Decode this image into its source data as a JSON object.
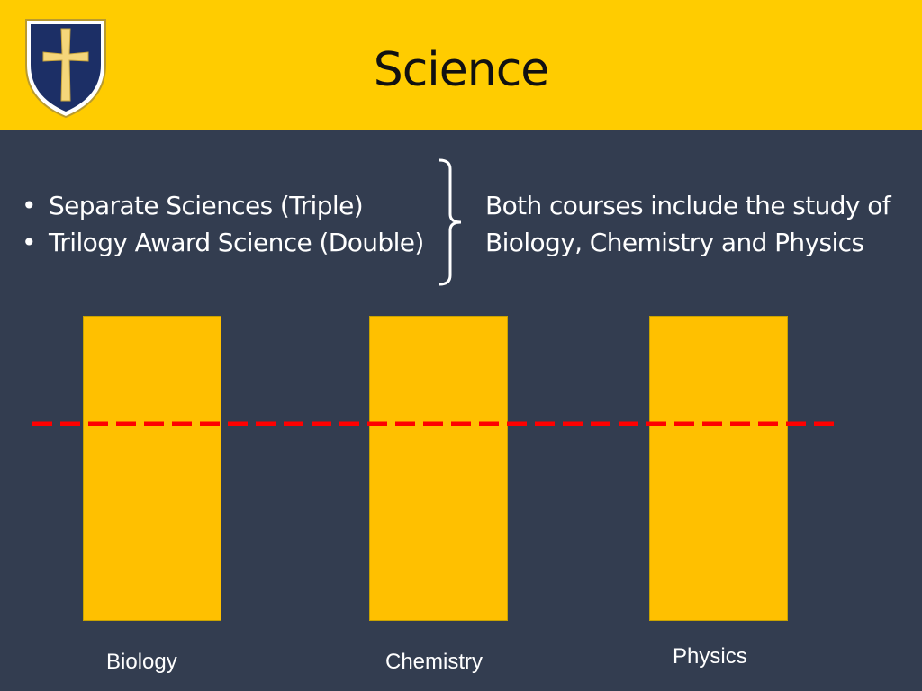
{
  "header": {
    "title": "Science",
    "crest_icon": "school-crest-icon",
    "background": "#FFCC00"
  },
  "courses": [
    "Separate Sciences (Triple)",
    "Trilogy Award Science (Double)"
  ],
  "bullet_symbol": "•",
  "note": {
    "line1": "Both courses include the study of",
    "line2": "Biology, Chemistry and Physics"
  },
  "subjects": [
    {
      "label": "Biology",
      "fill_fraction": 1.0
    },
    {
      "label": "Chemistry",
      "fill_fraction": 1.0
    },
    {
      "label": "Physics",
      "fill_fraction": 1.0
    }
  ],
  "colors": {
    "background": "#333D50",
    "bar": "#FFC000",
    "dash_line": "#FF0000",
    "text": "#FFFFFF"
  }
}
